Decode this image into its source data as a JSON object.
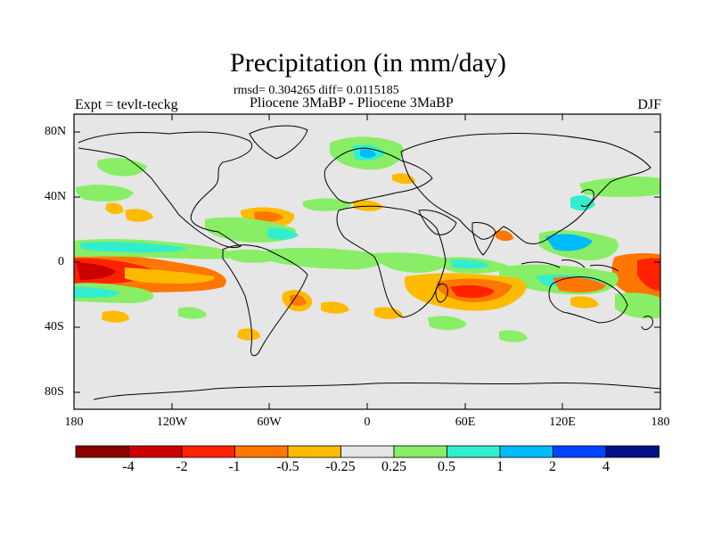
{
  "title": "Precipitation (in mm/day)",
  "stats": "rmsd= 0.304265 diff= 0.0115185",
  "left_label": "Expt = tevlt-teckg",
  "center_label": "Pliocene    3MaBP - Pliocene    3MaBP",
  "right_label": "DJF",
  "lat_ticks": [
    "80N",
    "40N",
    "0",
    "40S",
    "80S"
  ],
  "lon_ticks": [
    "180",
    "120W",
    "60W",
    "0",
    "60E",
    "120E",
    "180"
  ],
  "colorbar": {
    "labels": [
      "-4",
      "-2",
      "-1",
      "-0.5",
      "-0.25",
      "0.25",
      "0.5",
      "1",
      "2",
      "4"
    ],
    "colors": [
      "#8b0000",
      "#cc0000",
      "#ff2200",
      "#ff7700",
      "#ffbb00",
      "#e6e6e6",
      "#88ee66",
      "#33eecc",
      "#00bbff",
      "#0044ff",
      "#001188"
    ]
  },
  "map_style": {
    "background": "#e6e6e6",
    "coastline": "#000000"
  }
}
